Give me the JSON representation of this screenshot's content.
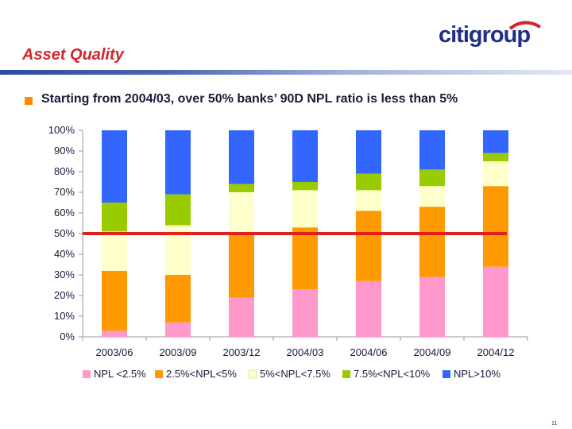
{
  "slide": {
    "title": "Asset Quality",
    "bullet": "Starting from 2004/03, over 50% banks’ 90D NPL ratio is less than 5%",
    "page_number": "11",
    "logo_text": "citigroup"
  },
  "colors": {
    "title": "#d5242b",
    "bullet": "#ff8a00",
    "logo": "#1f2f85",
    "logo_arc": "#d5242b",
    "threshold_line": "#e0201c"
  },
  "chart_data": {
    "type": "bar",
    "stacked": true,
    "title": "",
    "xlabel": "",
    "ylabel": "",
    "ylim": [
      0,
      100
    ],
    "yticks": [
      "0%",
      "10%",
      "20%",
      "30%",
      "40%",
      "50%",
      "60%",
      "70%",
      "80%",
      "90%",
      "100%"
    ],
    "categories": [
      "2003/06",
      "2003/09",
      "2003/12",
      "2004/03",
      "2004/06",
      "2004/09",
      "2004/12"
    ],
    "series": [
      {
        "name": "NPL <2.5%",
        "color": "#ff99cc",
        "values": [
          3,
          7,
          19,
          23,
          27,
          29,
          34
        ]
      },
      {
        "name": "2.5%<NPL<5%",
        "color": "#ff9900",
        "values": [
          29,
          23,
          31,
          30,
          34,
          34,
          39
        ]
      },
      {
        "name": "5%<NPL<7.5%",
        "color": "#ffffcc",
        "values": [
          19,
          24,
          20,
          18,
          10,
          10,
          12
        ]
      },
      {
        "name": "7.5%<NPL<10%",
        "color": "#99cc00",
        "values": [
          14,
          15,
          4,
          4,
          8,
          8,
          4
        ]
      },
      {
        "name": "NPL>10%",
        "color": "#3366ff",
        "values": [
          35,
          31,
          26,
          25,
          21,
          19,
          11
        ]
      }
    ],
    "threshold": 50,
    "legend_position": "bottom"
  }
}
